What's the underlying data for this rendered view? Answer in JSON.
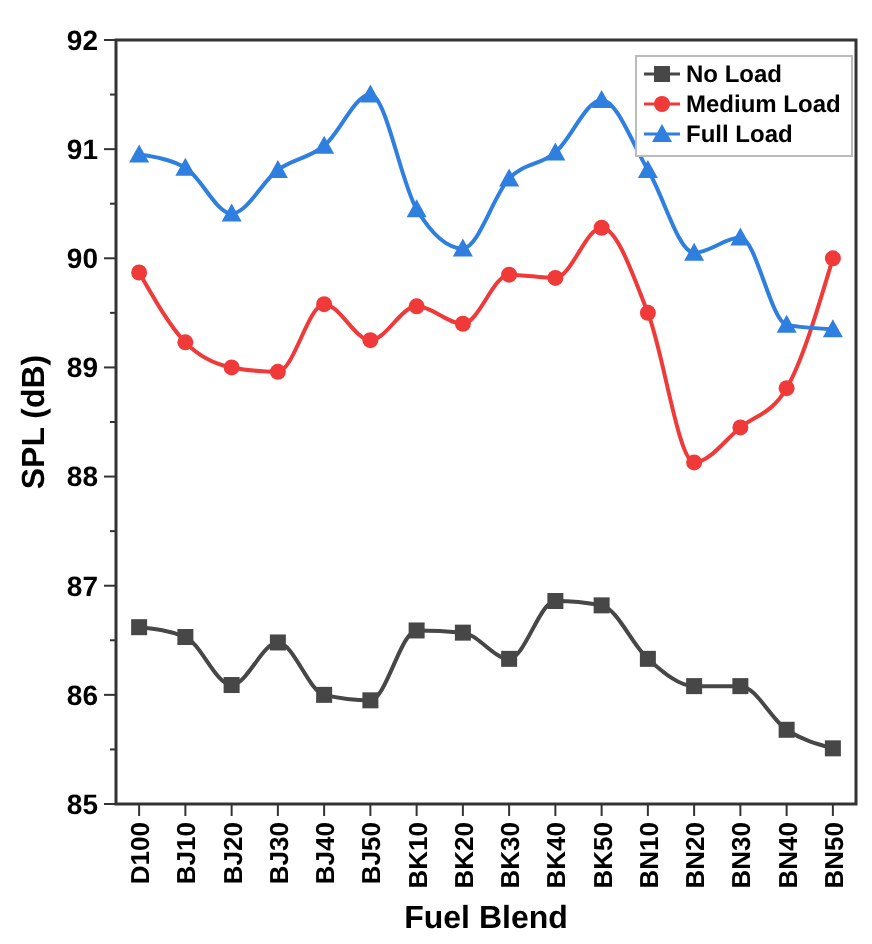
{
  "chart_data": {
    "type": "line",
    "xlabel": "Fuel Blend",
    "ylabel": "SPL (dB)",
    "categories": [
      "D100",
      "BJ10",
      "BJ20",
      "BJ30",
      "BJ40",
      "BJ50",
      "BK10",
      "BK20",
      "BK30",
      "BK40",
      "BK50",
      "BN10",
      "BN20",
      "BN30",
      "BN40",
      "BN50"
    ],
    "series": [
      {
        "name": "No Load",
        "color": "#474747",
        "marker": "square",
        "values": [
          86.62,
          86.53,
          86.09,
          86.48,
          86.0,
          85.95,
          86.59,
          86.57,
          86.33,
          86.86,
          86.82,
          86.33,
          86.08,
          86.08,
          85.68,
          85.51
        ]
      },
      {
        "name": "Medium Load",
        "color": "#f03a3a",
        "marker": "circle",
        "values": [
          89.87,
          89.23,
          89.0,
          88.96,
          89.58,
          89.25,
          89.56,
          89.4,
          89.85,
          89.82,
          90.28,
          89.5,
          88.13,
          88.45,
          88.81,
          90.0
        ]
      },
      {
        "name": "Full Load",
        "color": "#2f7fe0",
        "marker": "triangle",
        "values": [
          90.95,
          90.83,
          90.41,
          90.81,
          91.03,
          91.5,
          90.45,
          90.09,
          90.73,
          90.97,
          91.45,
          90.81,
          90.05,
          90.19,
          89.39,
          89.35
        ]
      }
    ],
    "ylim": [
      85,
      92
    ],
    "yticks": [
      85,
      {
        "value": 85.5,
        "label": null
      },
      86,
      {
        "value": 86.5,
        "label": null
      },
      87,
      {
        "value": 87.5,
        "label": null
      },
      88,
      {
        "value": 88.5,
        "label": null
      },
      89,
      {
        "value": 89.5,
        "label": null
      },
      90,
      {
        "value": 90.5,
        "label": null
      },
      91,
      {
        "value": 91.5,
        "label": null
      },
      92
    ],
    "grid": false,
    "legend": "top right"
  }
}
